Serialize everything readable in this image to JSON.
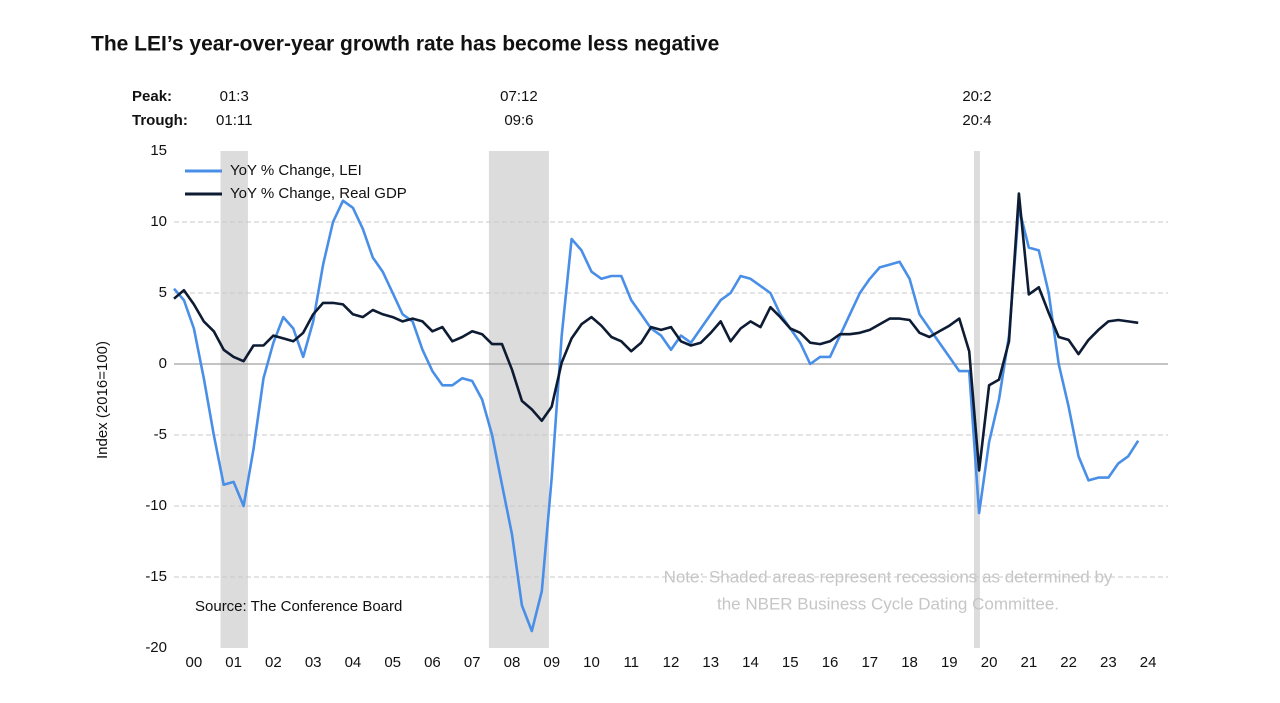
{
  "chart_data": {
    "type": "line",
    "title": "The LEI’s year-over-year growth rate has become less negative",
    "y_label": "Index (2016=100)",
    "source": "Source: The Conference Board",
    "note": [
      "Note: Shaded areas represent recessions as determined by",
      "the NBER Business Cycle Dating Committee."
    ],
    "peak_label": "Peak:",
    "trough_label": "Trough:",
    "recessions": [
      {
        "peak": "01:3",
        "trough": "01:11",
        "start": 2001.17,
        "end": 2001.86
      },
      {
        "peak": "07:12",
        "trough": "09:6",
        "start": 2007.92,
        "end": 2009.43
      },
      {
        "peak": "20:2",
        "trough": "20:4",
        "start": 2020.12,
        "end": 2020.27
      }
    ],
    "x": [
      2000,
      2000.25,
      2000.5,
      2000.75,
      2001,
      2001.25,
      2001.5,
      2001.75,
      2002,
      2002.25,
      2002.5,
      2002.75,
      2003,
      2003.25,
      2003.5,
      2003.75,
      2004,
      2004.25,
      2004.5,
      2004.75,
      2005,
      2005.25,
      2005.5,
      2005.75,
      2006,
      2006.25,
      2006.5,
      2006.75,
      2007,
      2007.25,
      2007.5,
      2007.75,
      2008,
      2008.25,
      2008.5,
      2008.75,
      2009,
      2009.25,
      2009.5,
      2009.75,
      2010,
      2010.25,
      2010.5,
      2010.75,
      2011,
      2011.25,
      2011.5,
      2011.75,
      2012,
      2012.25,
      2012.5,
      2012.75,
      2013,
      2013.25,
      2013.5,
      2013.75,
      2014,
      2014.25,
      2014.5,
      2014.75,
      2015,
      2015.25,
      2015.5,
      2015.75,
      2016,
      2016.25,
      2016.5,
      2016.75,
      2017,
      2017.25,
      2017.5,
      2017.75,
      2018,
      2018.25,
      2018.5,
      2018.75,
      2019,
      2019.25,
      2019.5,
      2019.75,
      2020,
      2020.25,
      2020.5,
      2020.75,
      2021,
      2021.25,
      2021.5,
      2021.75,
      2022,
      2022.25,
      2022.5,
      2022.75,
      2023,
      2023.25,
      2023.5,
      2023.75,
      2024,
      2024.25
    ],
    "series": [
      {
        "name": "YoY % Change, LEI",
        "color": "#4a8fe7",
        "values": [
          5.3,
          4.5,
          2.5,
          -1,
          -5,
          -8.5,
          -8.3,
          -10,
          -6,
          -1,
          1.5,
          3.3,
          2.5,
          0.5,
          3,
          7,
          10,
          11.5,
          11,
          9.5,
          7.5,
          6.5,
          5,
          3.5,
          3,
          1,
          -0.5,
          -1.5,
          -1.5,
          -1,
          -1.2,
          -2.5,
          -5,
          -8.5,
          -12,
          -17,
          -18.8,
          -16,
          -8,
          2,
          8.8,
          8,
          6.5,
          6,
          6.2,
          6.2,
          4.5,
          3.5,
          2.5,
          2,
          1,
          2,
          1.5,
          2.5,
          3.5,
          4.5,
          5,
          6.2,
          6,
          5.5,
          5,
          3.5,
          2.5,
          1.5,
          0,
          0.5,
          0.5,
          2,
          3.5,
          5,
          6,
          6.8,
          7,
          7.2,
          6,
          3.5,
          2.5,
          1.5,
          0.5,
          -0.5,
          -0.5,
          -10.5,
          -5.5,
          -2.5,
          2,
          11,
          8.2,
          8,
          5,
          0,
          -3,
          -6.5,
          -8.2,
          -8,
          -8,
          -7,
          -6.5,
          -5.4
        ]
      },
      {
        "name": "YoY % Change, Real GDP",
        "color": "#0d1b33",
        "values": [
          4.6,
          5.2,
          4.2,
          3,
          2.3,
          1,
          0.5,
          0.2,
          1.3,
          1.3,
          2,
          1.8,
          1.6,
          2.2,
          3.5,
          4.3,
          4.3,
          4.2,
          3.5,
          3.3,
          3.8,
          3.5,
          3.3,
          3,
          3.2,
          3,
          2.3,
          2.6,
          1.6,
          1.9,
          2.3,
          2.1,
          1.4,
          1.4,
          -0.4,
          -2.6,
          -3.2,
          -4,
          -3,
          0.1,
          1.8,
          2.8,
          3.3,
          2.7,
          1.9,
          1.6,
          0.9,
          1.5,
          2.6,
          2.4,
          2.6,
          1.6,
          1.3,
          1.5,
          2.2,
          3,
          1.6,
          2.5,
          3,
          2.6,
          4,
          3.3,
          2.5,
          2.2,
          1.5,
          1.4,
          1.6,
          2.1,
          2.1,
          2.2,
          2.4,
          2.8,
          3.2,
          3.2,
          3.1,
          2.2,
          1.9,
          2.3,
          2.7,
          3.2,
          0.9,
          -7.5,
          -1.5,
          -1.1,
          1.6,
          12,
          4.9,
          5.4,
          3.6,
          1.9,
          1.7,
          0.7,
          1.7,
          2.4,
          3,
          3.1,
          3,
          2.9
        ]
      }
    ],
    "xlim": [
      2000,
      2025
    ],
    "xticks": [
      {
        "value": 2000.5,
        "label": "00"
      },
      {
        "value": 2001.5,
        "label": "01"
      },
      {
        "value": 2002.5,
        "label": "02"
      },
      {
        "value": 2003.5,
        "label": "03"
      },
      {
        "value": 2004.5,
        "label": "04"
      },
      {
        "value": 2005.5,
        "label": "05"
      },
      {
        "value": 2006.5,
        "label": "06"
      },
      {
        "value": 2007.5,
        "label": "07"
      },
      {
        "value": 2008.5,
        "label": "08"
      },
      {
        "value": 2009.5,
        "label": "09"
      },
      {
        "value": 2010.5,
        "label": "10"
      },
      {
        "value": 2011.5,
        "label": "11"
      },
      {
        "value": 2012.5,
        "label": "12"
      },
      {
        "value": 2013.5,
        "label": "13"
      },
      {
        "value": 2014.5,
        "label": "14"
      },
      {
        "value": 2015.5,
        "label": "15"
      },
      {
        "value": 2016.5,
        "label": "16"
      },
      {
        "value": 2017.5,
        "label": "17"
      },
      {
        "value": 2018.5,
        "label": "18"
      },
      {
        "value": 2019.5,
        "label": "19"
      },
      {
        "value": 2020.5,
        "label": "20"
      },
      {
        "value": 2021.5,
        "label": "21"
      },
      {
        "value": 2022.5,
        "label": "22"
      },
      {
        "value": 2023.5,
        "label": "23"
      },
      {
        "value": 2024.5,
        "label": "24"
      }
    ],
    "ylim": [
      -20,
      15
    ],
    "yticks": [
      -20,
      -15,
      -10,
      -5,
      0,
      5,
      10,
      15
    ],
    "grid": true,
    "legend": "top-left"
  }
}
